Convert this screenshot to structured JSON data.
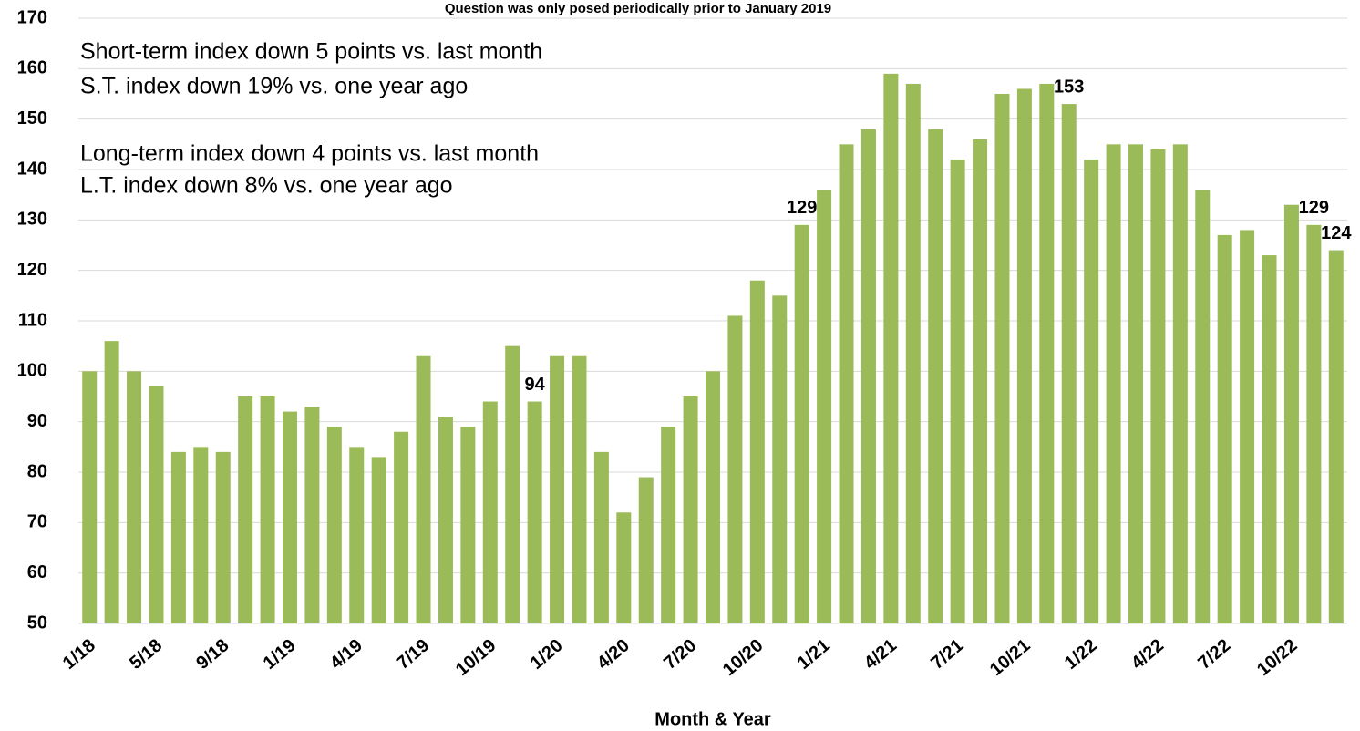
{
  "chart_data": {
    "type": "bar",
    "subtitle": "Question was only posed periodically prior to January 2019",
    "x_label": "Month & Year",
    "annotations": [
      "Short-term index down 5 points vs. last month",
      "S.T. index down 19% vs. one year ago",
      "Long-term index down 4 points vs. last month",
      "L.T. index down 8% vs. one year ago"
    ],
    "categories": [
      "1/18",
      null,
      null,
      "5/18",
      null,
      null,
      "9/18",
      null,
      null,
      "1/19",
      null,
      null,
      "4/19",
      null,
      null,
      "7/19",
      null,
      null,
      "10/19",
      null,
      null,
      "1/20",
      null,
      null,
      "4/20",
      null,
      null,
      "7/20",
      null,
      null,
      "10/20",
      null,
      null,
      "1/21",
      null,
      null,
      "4/21",
      null,
      null,
      "7/21",
      null,
      null,
      "10/21",
      null,
      null,
      "1/22",
      null,
      null,
      "4/22",
      null,
      null,
      "7/22",
      null,
      null,
      "10/22",
      null,
      null
    ],
    "values": [
      100,
      106,
      100,
      97,
      84,
      85,
      84,
      95,
      95,
      92,
      93,
      89,
      85,
      83,
      88,
      103,
      91,
      89,
      94,
      105,
      94,
      103,
      103,
      84,
      72,
      79,
      89,
      95,
      100,
      111,
      118,
      115,
      129,
      136,
      145,
      148,
      159,
      157,
      148,
      142,
      146,
      155,
      156,
      157,
      153,
      142,
      145,
      145,
      144,
      145,
      136,
      127,
      128,
      123,
      133,
      129,
      124
    ],
    "value_labels": [
      null,
      null,
      null,
      null,
      null,
      null,
      null,
      null,
      null,
      null,
      null,
      null,
      null,
      null,
      null,
      null,
      null,
      null,
      null,
      null,
      "94",
      null,
      null,
      null,
      null,
      null,
      null,
      null,
      null,
      null,
      null,
      null,
      "129",
      null,
      null,
      null,
      null,
      null,
      null,
      null,
      null,
      null,
      null,
      null,
      "153",
      null,
      null,
      null,
      null,
      null,
      null,
      null,
      null,
      null,
      null,
      "129",
      "124"
    ],
    "color": "#9bbb59",
    "ylim": [
      50,
      170
    ],
    "yticks": [
      50,
      60,
      70,
      80,
      90,
      100,
      110,
      120,
      130,
      140,
      150,
      160,
      170
    ],
    "grid": true
  }
}
